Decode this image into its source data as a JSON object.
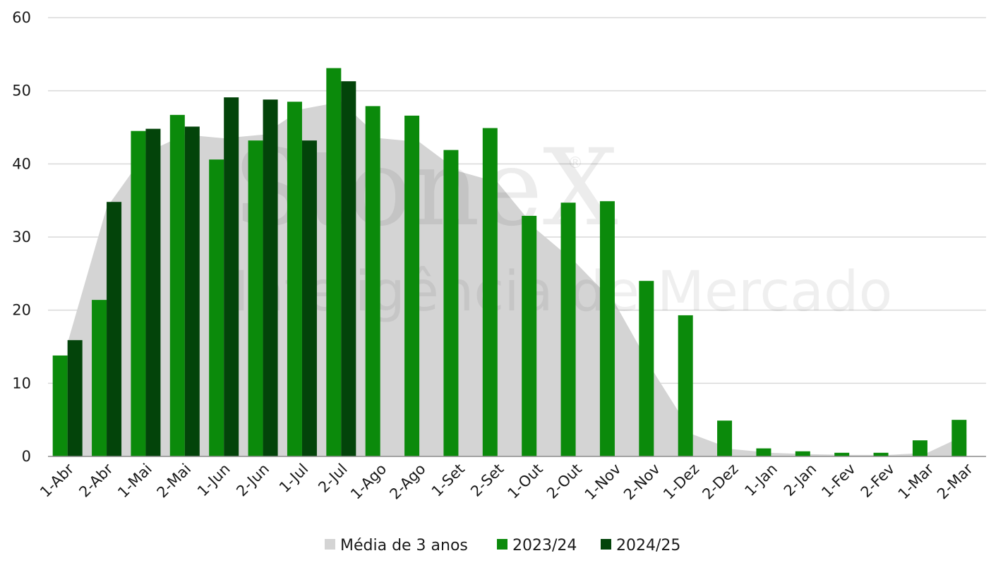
{
  "watermark": {
    "brand": "StoneX",
    "mark": "®",
    "tagline": "Inteligência de Mercado"
  },
  "chart_data": {
    "type": "bar",
    "ylim": [
      0,
      60
    ],
    "yticks": [
      0,
      10,
      20,
      30,
      40,
      50,
      60
    ],
    "grid": true,
    "legend_position": "bottom",
    "categories": [
      "1-Abr",
      "2-Abr",
      "1-Mai",
      "2-Mai",
      "1-Jun",
      "2-Jun",
      "1-Jul",
      "2-Jul",
      "1-Ago",
      "2-Ago",
      "1-Set",
      "2-Set",
      "1-Out",
      "2-Out",
      "1-Nov",
      "2-Nov",
      "1-Dez",
      "2-Dez",
      "1-Jan",
      "2-Jan",
      "1-Fev",
      "2-Fev",
      "1-Mar",
      "2-Mar"
    ],
    "series": [
      {
        "name": "Média de 3 anos",
        "type": "area",
        "color": "#d4d4d4",
        "values": [
          15.5,
          34.0,
          41.5,
          44.0,
          43.5,
          44.0,
          47.5,
          48.5,
          43.5,
          43.0,
          39.0,
          37.5,
          31.0,
          26.5,
          21.0,
          11.5,
          3.0,
          1.0,
          0.5,
          0.3,
          0.2,
          0.2,
          0.5,
          3.0
        ]
      },
      {
        "name": "2023/24",
        "type": "bar",
        "color": "#0b8a0b",
        "values": [
          13.8,
          21.4,
          44.5,
          46.7,
          40.6,
          43.2,
          48.5,
          53.1,
          47.9,
          46.6,
          41.9,
          44.9,
          32.9,
          34.7,
          34.9,
          24.0,
          19.3,
          4.9,
          1.1,
          0.7,
          0.5,
          0.5,
          2.2,
          5.0
        ]
      },
      {
        "name": "2024/25",
        "type": "bar",
        "color": "#03440a",
        "values": [
          15.9,
          34.8,
          44.8,
          45.1,
          49.1,
          48.8,
          43.2,
          51.3,
          null,
          null,
          null,
          null,
          null,
          null,
          null,
          null,
          null,
          null,
          null,
          null,
          null,
          null,
          null,
          null
        ]
      }
    ]
  }
}
